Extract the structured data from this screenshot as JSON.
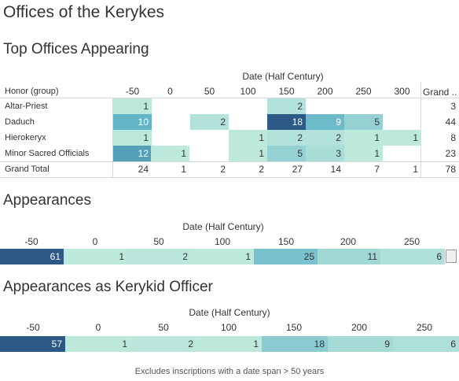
{
  "title": "Offices of the Kerykes",
  "chart_data": [
    {
      "type": "table",
      "title": "Top Offices Appearing",
      "column_axis_title": "Date (Half Century)",
      "row_header": "Honor (group)",
      "columns": [
        "-50",
        "0",
        "50",
        "100",
        "150",
        "200",
        "250",
        "300"
      ],
      "grand_column_label": "Grand ..",
      "rows": [
        {
          "label": "Altar-Priest",
          "values": [
            1,
            null,
            null,
            null,
            2,
            null,
            null,
            null
          ],
          "total": 3
        },
        {
          "label": "Daduch",
          "values": [
            10,
            null,
            2,
            null,
            18,
            9,
            5,
            null
          ],
          "total": 44
        },
        {
          "label": "Hierokeryx",
          "values": [
            1,
            null,
            null,
            1,
            2,
            2,
            1,
            1
          ],
          "total": 8
        },
        {
          "label": "Minor Sacred Officials",
          "values": [
            12,
            1,
            null,
            1,
            5,
            3,
            1,
            null
          ],
          "total": 23
        }
      ],
      "grand_total": {
        "label": "Grand Total",
        "values": [
          24,
          1,
          2,
          2,
          27,
          14,
          7,
          1
        ],
        "total": 78
      }
    },
    {
      "type": "heatmap",
      "title": "Appearances",
      "xlabel": "Date (Half Century)",
      "categories": [
        "-50",
        "0",
        "50",
        "100",
        "150",
        "200",
        "250"
      ],
      "values": [
        61,
        1,
        2,
        1,
        25,
        11,
        6
      ]
    },
    {
      "type": "heatmap",
      "title": "Appearances as Kerykid Officer",
      "xlabel": "Date (Half Century)",
      "categories": [
        "-50",
        "0",
        "50",
        "100",
        "150",
        "200",
        "250"
      ],
      "values": [
        57,
        1,
        2,
        1,
        18,
        9,
        6
      ]
    }
  ],
  "footnote": "Excludes inscriptions with a date span > 50 years",
  "palette": {
    "low": "#bde8dc",
    "mid": "#5fb3c7",
    "high": "#2c5985",
    "text_dark": "#333333",
    "text_light": "#ffffff"
  }
}
